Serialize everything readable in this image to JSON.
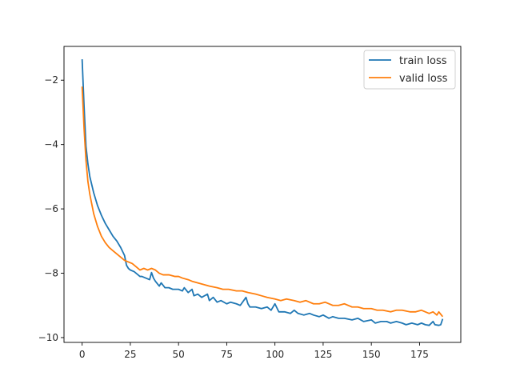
{
  "chart_data": {
    "type": "line",
    "title": "",
    "xlabel": "",
    "ylabel": "",
    "xlim": [
      -9.4,
      196.4
    ],
    "ylim": [
      -10.15,
      -0.95
    ],
    "xticks": [
      0,
      25,
      50,
      75,
      100,
      125,
      150,
      175
    ],
    "yticks": [
      -10,
      -8,
      -6,
      -4,
      -2
    ],
    "grid": false,
    "legend_position": "top-right",
    "series": [
      {
        "name": "train loss",
        "color": "#1f77b4",
        "x": [
          0,
          1,
          2,
          3,
          4,
          5,
          6,
          8,
          10,
          12,
          14,
          16,
          18,
          20,
          22,
          23,
          24,
          25,
          27,
          29,
          30,
          31,
          33,
          35,
          36,
          37,
          38,
          40,
          41,
          43,
          45,
          47,
          50,
          52,
          53,
          55,
          57,
          58,
          60,
          62,
          65,
          66,
          68,
          70,
          72,
          75,
          77,
          80,
          82,
          85,
          86,
          87,
          90,
          93,
          96,
          98,
          100,
          102,
          105,
          108,
          110,
          112,
          115,
          118,
          120,
          123,
          125,
          128,
          130,
          133,
          136,
          140,
          143,
          146,
          150,
          152,
          155,
          158,
          160,
          163,
          166,
          168,
          171,
          174,
          176,
          178,
          180,
          182,
          183,
          185,
          186,
          187
        ],
        "y": [
          -1.35,
          -2.8,
          -4.05,
          -4.6,
          -5.0,
          -5.25,
          -5.5,
          -5.9,
          -6.2,
          -6.45,
          -6.65,
          -6.85,
          -7.0,
          -7.2,
          -7.45,
          -7.75,
          -7.85,
          -7.9,
          -7.95,
          -8.05,
          -8.1,
          -8.1,
          -8.15,
          -8.2,
          -7.98,
          -8.15,
          -8.25,
          -8.4,
          -8.3,
          -8.45,
          -8.45,
          -8.5,
          -8.5,
          -8.55,
          -8.45,
          -8.6,
          -8.5,
          -8.7,
          -8.65,
          -8.75,
          -8.65,
          -8.85,
          -8.75,
          -8.9,
          -8.85,
          -8.95,
          -8.9,
          -8.95,
          -9.0,
          -8.75,
          -8.95,
          -9.05,
          -9.05,
          -9.1,
          -9.05,
          -9.15,
          -8.95,
          -9.2,
          -9.2,
          -9.25,
          -9.15,
          -9.25,
          -9.3,
          -9.25,
          -9.3,
          -9.35,
          -9.3,
          -9.4,
          -9.35,
          -9.4,
          -9.4,
          -9.45,
          -9.4,
          -9.5,
          -9.45,
          -9.55,
          -9.5,
          -9.5,
          -9.55,
          -9.5,
          -9.55,
          -9.6,
          -9.55,
          -9.6,
          -9.55,
          -9.6,
          -9.62,
          -9.5,
          -9.6,
          -9.62,
          -9.6,
          -9.42
        ]
      },
      {
        "name": "valid loss",
        "color": "#ff7f0e",
        "x": [
          0,
          1,
          2,
          3,
          4,
          5,
          6,
          8,
          10,
          12,
          14,
          16,
          18,
          20,
          22,
          24,
          26,
          28,
          30,
          32,
          34,
          36,
          38,
          40,
          42,
          45,
          48,
          50,
          52,
          55,
          57,
          60,
          63,
          66,
          70,
          73,
          76,
          80,
          83,
          86,
          90,
          93,
          96,
          100,
          103,
          106,
          110,
          113,
          116,
          120,
          123,
          126,
          130,
          133,
          136,
          140,
          143,
          146,
          150,
          153,
          156,
          160,
          163,
          166,
          170,
          173,
          176,
          180,
          182,
          184,
          185,
          187
        ],
        "y": [
          -2.2,
          -3.5,
          -4.5,
          -5.15,
          -5.55,
          -5.85,
          -6.15,
          -6.55,
          -6.85,
          -7.05,
          -7.2,
          -7.3,
          -7.4,
          -7.5,
          -7.6,
          -7.65,
          -7.7,
          -7.8,
          -7.9,
          -7.85,
          -7.9,
          -7.85,
          -7.9,
          -8.0,
          -8.05,
          -8.05,
          -8.1,
          -8.1,
          -8.15,
          -8.2,
          -8.25,
          -8.3,
          -8.35,
          -8.4,
          -8.45,
          -8.5,
          -8.5,
          -8.55,
          -8.55,
          -8.6,
          -8.65,
          -8.7,
          -8.75,
          -8.8,
          -8.85,
          -8.8,
          -8.85,
          -8.9,
          -8.85,
          -8.95,
          -8.95,
          -8.9,
          -9.0,
          -9.0,
          -8.95,
          -9.05,
          -9.05,
          -9.1,
          -9.1,
          -9.15,
          -9.15,
          -9.2,
          -9.15,
          -9.15,
          -9.2,
          -9.2,
          -9.15,
          -9.25,
          -9.2,
          -9.3,
          -9.2,
          -9.35
        ]
      }
    ]
  }
}
